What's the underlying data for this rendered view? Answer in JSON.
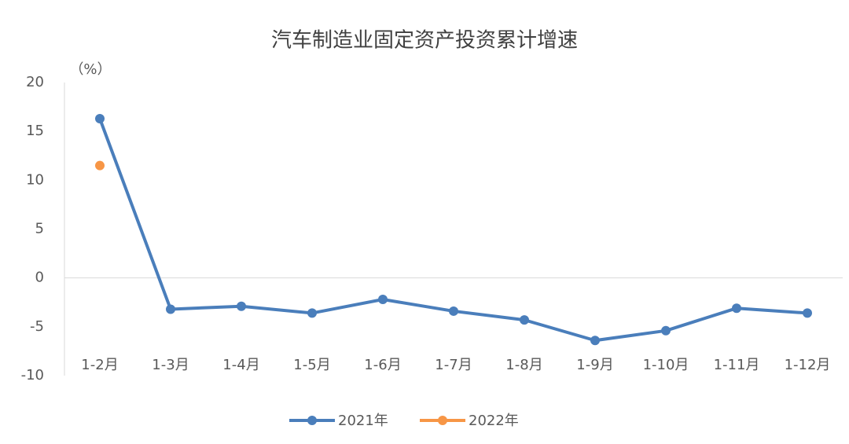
{
  "chart_data": {
    "type": "line",
    "title": "汽车制造业固定资产投资累计增速",
    "y_unit": "（%）",
    "categories": [
      "1-2月",
      "1-3月",
      "1-4月",
      "1-5月",
      "1-6月",
      "1-7月",
      "1-8月",
      "1-9月",
      "1-10月",
      "1-11月",
      "1-12月"
    ],
    "series": [
      {
        "name": "2021年",
        "color": "#4a7ebb",
        "values": [
          16.3,
          -3.2,
          -2.9,
          -3.6,
          -2.2,
          -3.4,
          -4.3,
          -6.4,
          -5.4,
          -3.1,
          -3.6
        ]
      },
      {
        "name": "2022年",
        "color": "#f79646",
        "values": [
          11.5,
          null,
          null,
          null,
          null,
          null,
          null,
          null,
          null,
          null,
          null
        ]
      }
    ],
    "ylim": [
      -10,
      20
    ],
    "yticks": [
      -10,
      -5,
      0,
      5,
      10,
      15,
      20
    ],
    "grid": false,
    "legend": "bottom"
  }
}
